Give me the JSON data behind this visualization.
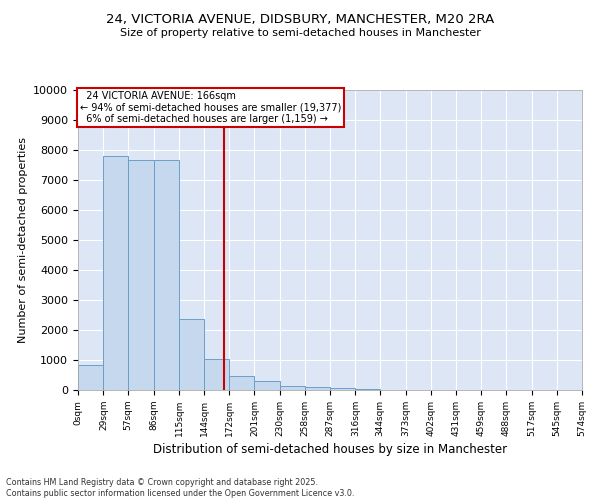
{
  "title1": "24, VICTORIA AVENUE, DIDSBURY, MANCHESTER, M20 2RA",
  "title2": "Size of property relative to semi-detached houses in Manchester",
  "xlabel": "Distribution of semi-detached houses by size in Manchester",
  "ylabel": "Number of semi-detached properties",
  "property_size": 166,
  "property_label": "24 VICTORIA AVENUE: 166sqm",
  "pct_smaller": 94,
  "num_smaller": 19377,
  "pct_larger": 6,
  "num_larger": 1159,
  "bar_color": "#c5d8ee",
  "bar_edge_color": "#6b9fc8",
  "vline_color": "#cc0000",
  "annotation_box_color": "#cc0000",
  "background_color": "#dce6f5",
  "grid_color": "#ffffff",
  "bins": [
    0,
    29,
    57,
    86,
    115,
    144,
    172,
    201,
    230,
    258,
    287,
    316,
    344,
    373,
    402,
    431,
    459,
    488,
    517,
    545,
    574
  ],
  "bin_labels": [
    "0sqm",
    "29sqm",
    "57sqm",
    "86sqm",
    "115sqm",
    "144sqm",
    "172sqm",
    "201sqm",
    "230sqm",
    "258sqm",
    "287sqm",
    "316sqm",
    "344sqm",
    "373sqm",
    "402sqm",
    "431sqm",
    "459sqm",
    "488sqm",
    "517sqm",
    "545sqm",
    "574sqm"
  ],
  "counts": [
    850,
    7800,
    7650,
    7650,
    2380,
    1020,
    460,
    310,
    120,
    100,
    80,
    30,
    5,
    0,
    0,
    0,
    0,
    0,
    0,
    0
  ],
  "ylim": [
    0,
    10000
  ],
  "yticks": [
    0,
    1000,
    2000,
    3000,
    4000,
    5000,
    6000,
    7000,
    8000,
    9000,
    10000
  ],
  "footnote1": "Contains HM Land Registry data © Crown copyright and database right 2025.",
  "footnote2": "Contains public sector information licensed under the Open Government Licence v3.0."
}
